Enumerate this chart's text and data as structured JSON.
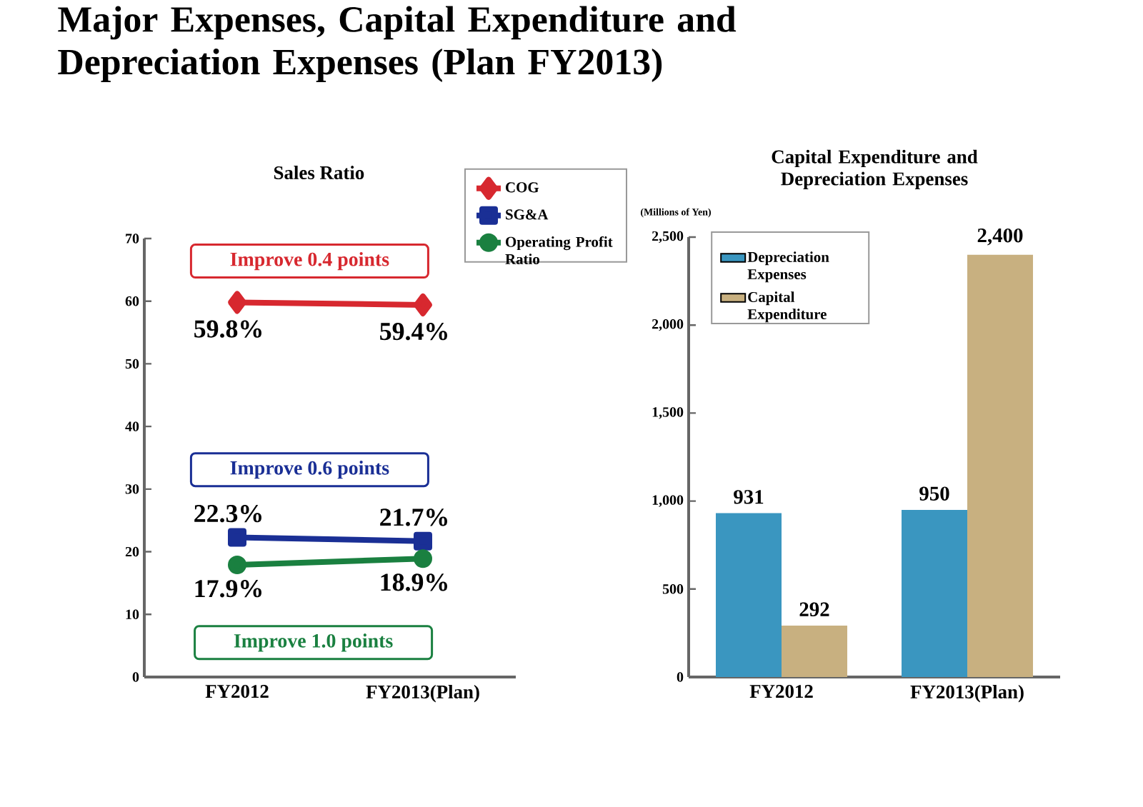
{
  "chart_data": [
    {
      "type": "line",
      "title": "Major Expenses, Capital Expenditure and Depreciation Expenses (Plan FY2013)",
      "subtitle": "Sales Ratio",
      "categories": [
        "FY2012",
        "FY2013(Plan)"
      ],
      "series": [
        {
          "name": "COG",
          "color": "#d7282f",
          "marker": "diamond",
          "values": [
            59.8,
            59.4
          ],
          "value_labels": [
            "59.8%",
            "59.4%"
          ]
        },
        {
          "name": "SG&A",
          "color": "#1a2f95",
          "marker": "square",
          "values": [
            22.3,
            21.7
          ],
          "value_labels": [
            "22.3%",
            "21.7%"
          ]
        },
        {
          "name": "Operating Profit Ratio",
          "color": "#1a8040",
          "marker": "circle",
          "values": [
            17.9,
            18.9
          ],
          "value_labels": [
            "17.9%",
            "18.9%"
          ]
        }
      ],
      "ylim": [
        0,
        70
      ],
      "yticks": [
        0,
        10,
        20,
        30,
        40,
        50,
        60,
        70
      ],
      "legend": "top right",
      "annotations": [
        "Improve 0.4 points",
        "Improve 0.6 points",
        "Improve 1.0 points"
      ]
    },
    {
      "type": "bar",
      "title": "Capital Expenditure and Depreciation Expenses",
      "ylabel": "(Millions of Yen)",
      "categories": [
        "FY2012",
        "FY2013(Plan)"
      ],
      "series": [
        {
          "name": "Depreciation Expenses",
          "color": "#3a96c0",
          "values": [
            931,
            950
          ],
          "value_labels": [
            "931",
            "950"
          ]
        },
        {
          "name": "Capital Expenditure",
          "color": "#c8b080",
          "values": [
            292,
            2400
          ],
          "value_labels": [
            "292",
            "2,400"
          ]
        }
      ],
      "ylim": [
        0,
        2500
      ],
      "yticks": [
        0,
        500,
        {
          "value": 1000,
          "label": "1,000"
        },
        {
          "value": 1500,
          "label": "1,500"
        },
        {
          "value": 2000,
          "label": "2,000"
        },
        {
          "value": 2500,
          "label": "2,500"
        }
      ],
      "legend": "top left"
    }
  ]
}
